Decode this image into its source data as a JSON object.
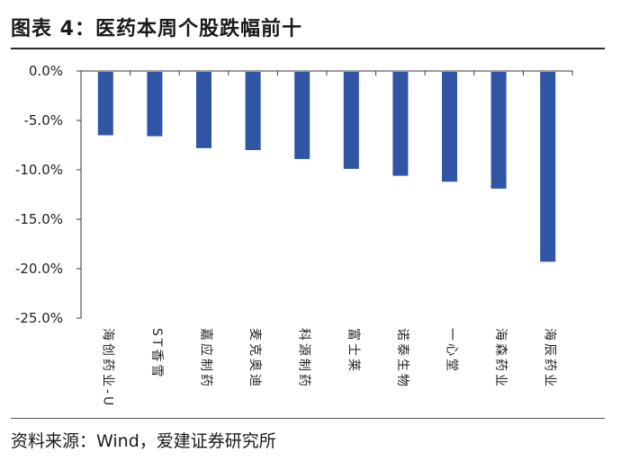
{
  "header": {
    "title": "图表 4：医药本周个股跌幅前十"
  },
  "footer": {
    "source": "资料来源：Wind，爱建证券研究所"
  },
  "chart_data": {
    "type": "bar",
    "title": "",
    "xlabel": "",
    "ylabel": "",
    "ylim": [
      -25,
      0
    ],
    "yticks": [
      "0.0%",
      "-5.0%",
      "-10.0%",
      "-15.0%",
      "-20.0%",
      "-25.0%"
    ],
    "categories": [
      "海创药业-U",
      "ST香雪",
      "嘉应制药",
      "麦克奥迪",
      "科源制药",
      "富士莱",
      "诺泰生物",
      "一心堂",
      "海森药业",
      "海辰药业"
    ],
    "values": [
      -6.5,
      -6.6,
      -7.8,
      -8.0,
      -8.9,
      -9.9,
      -10.6,
      -11.2,
      -11.9,
      -19.3
    ],
    "bar_color": "#2f55a4"
  }
}
